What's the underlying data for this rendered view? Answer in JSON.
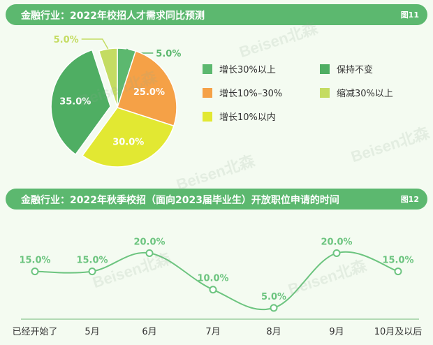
{
  "watermark": "Beisen北森",
  "colors": {
    "green": "#5cb86f",
    "dark_green": "#4fae63",
    "orange": "#f5a147",
    "yellow": "#e2e832",
    "light_green": "#c4dc62",
    "line": "#6cc47f",
    "text": "#333333"
  },
  "chart_data": [
    {
      "type": "pie",
      "title": "金融行业：2022年校招人才需求同比预测",
      "figure_label": "图11",
      "series": [
        {
          "name": "增长30%以上",
          "value": 5.0,
          "label": "5.0%",
          "color": "#5cb86f"
        },
        {
          "name": "增长10%–30%",
          "value": 25.0,
          "label": "25.0%",
          "color": "#f5a147"
        },
        {
          "name": "增长10%以内",
          "value": 30.0,
          "label": "30.0%",
          "color": "#e2e832"
        },
        {
          "name": "保持不变",
          "value": 35.0,
          "label": "35.0%",
          "color": "#4fae63"
        },
        {
          "name": "缩减30%以上",
          "value": 5.0,
          "label": "5.0%",
          "color": "#c4dc62"
        }
      ],
      "legend_placement": "right"
    },
    {
      "type": "line",
      "title": "金融行业：2022年秋季校招（面向2023届毕业生）开放职位申请的时间",
      "figure_label": "图12",
      "categories": [
        "已经开始了",
        "5月",
        "6月",
        "7月",
        "8月",
        "9月",
        "10月及以后"
      ],
      "values": [
        15.0,
        15.0,
        20.0,
        10.0,
        5.0,
        20.0,
        15.0
      ],
      "labels": [
        "15.0%",
        "15.0%",
        "20.0%",
        "10.0%",
        "5.0%",
        "20.0%",
        "15.0%"
      ],
      "ylim": [
        0,
        22
      ],
      "grid": false
    }
  ]
}
